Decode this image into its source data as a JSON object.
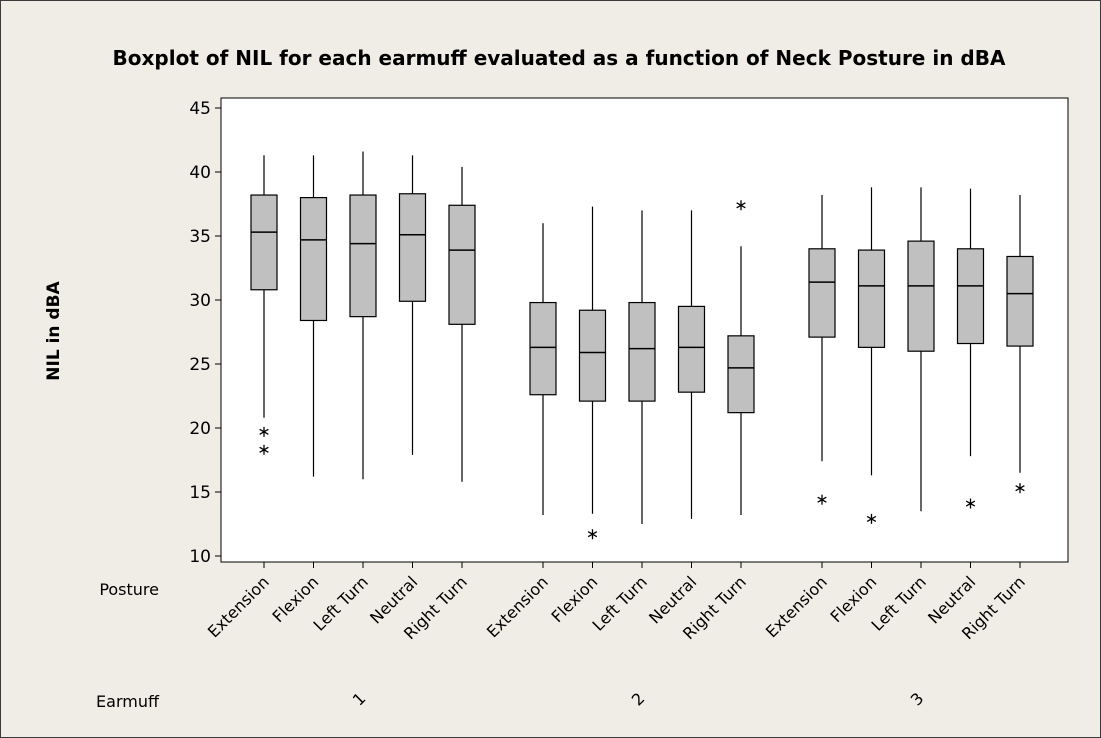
{
  "chart_data": {
    "type": "boxplot",
    "title": "Boxplot of NIL for each earmuff evaluated as a function of Neck Posture in dBA",
    "ylabel": "NIL in dBA",
    "ylim": [
      10,
      45
    ],
    "yticks": [
      10,
      15,
      20,
      25,
      30,
      35,
      40,
      45
    ],
    "grid": false,
    "row_labels": {
      "posture": "Posture",
      "earmuff": "Earmuff"
    },
    "groups": [
      {
        "earmuff": "1",
        "boxes": [
          {
            "posture": "Extension",
            "min": 20.8,
            "q1": 30.8,
            "median": 35.3,
            "q3": 38.2,
            "max": 41.3,
            "outliers": [
              18.3,
              19.7
            ]
          },
          {
            "posture": "Flexion",
            "min": 16.2,
            "q1": 28.4,
            "median": 34.7,
            "q3": 38.0,
            "max": 41.3,
            "outliers": []
          },
          {
            "posture": "Left Turn",
            "min": 16.0,
            "q1": 28.7,
            "median": 34.4,
            "q3": 38.2,
            "max": 41.6,
            "outliers": []
          },
          {
            "posture": "Neutral",
            "min": 17.9,
            "q1": 29.9,
            "median": 35.1,
            "q3": 38.3,
            "max": 41.3,
            "outliers": []
          },
          {
            "posture": "Right Turn",
            "min": 15.8,
            "q1": 28.1,
            "median": 33.9,
            "q3": 37.4,
            "max": 40.4,
            "outliers": []
          }
        ]
      },
      {
        "earmuff": "2",
        "boxes": [
          {
            "posture": "Extension",
            "min": 13.2,
            "q1": 22.6,
            "median": 26.3,
            "q3": 29.8,
            "max": 36.0,
            "outliers": []
          },
          {
            "posture": "Flexion",
            "min": 13.3,
            "q1": 22.1,
            "median": 25.9,
            "q3": 29.2,
            "max": 37.3,
            "outliers": [
              11.7
            ]
          },
          {
            "posture": "Left Turn",
            "min": 12.5,
            "q1": 22.1,
            "median": 26.2,
            "q3": 29.8,
            "max": 37.0,
            "outliers": []
          },
          {
            "posture": "Neutral",
            "min": 12.9,
            "q1": 22.8,
            "median": 26.3,
            "q3": 29.5,
            "max": 37.0,
            "outliers": []
          },
          {
            "posture": "Right Turn",
            "min": 13.2,
            "q1": 21.2,
            "median": 24.7,
            "q3": 27.2,
            "max": 34.2,
            "outliers": [
              37.4
            ]
          }
        ]
      },
      {
        "earmuff": "3",
        "boxes": [
          {
            "posture": "Extension",
            "min": 17.4,
            "q1": 27.1,
            "median": 31.4,
            "q3": 34.0,
            "max": 38.2,
            "outliers": [
              14.4
            ]
          },
          {
            "posture": "Flexion",
            "min": 16.3,
            "q1": 26.3,
            "median": 31.1,
            "q3": 33.9,
            "max": 38.8,
            "outliers": [
              12.9
            ]
          },
          {
            "posture": "Left Turn",
            "min": 13.5,
            "q1": 26.0,
            "median": 31.1,
            "q3": 34.6,
            "max": 38.8,
            "outliers": []
          },
          {
            "posture": "Neutral",
            "min": 17.8,
            "q1": 26.6,
            "median": 31.1,
            "q3": 34.0,
            "max": 38.7,
            "outliers": [
              14.1
            ]
          },
          {
            "posture": "Right Turn",
            "min": 16.5,
            "q1": 26.4,
            "median": 30.5,
            "q3": 33.4,
            "max": 38.2,
            "outliers": [
              15.3
            ]
          }
        ]
      }
    ]
  },
  "colors": {
    "background": "#f0ede6",
    "plot_area": "#ffffff",
    "box_fill": "#c0c0c0",
    "stroke": "#000000"
  }
}
